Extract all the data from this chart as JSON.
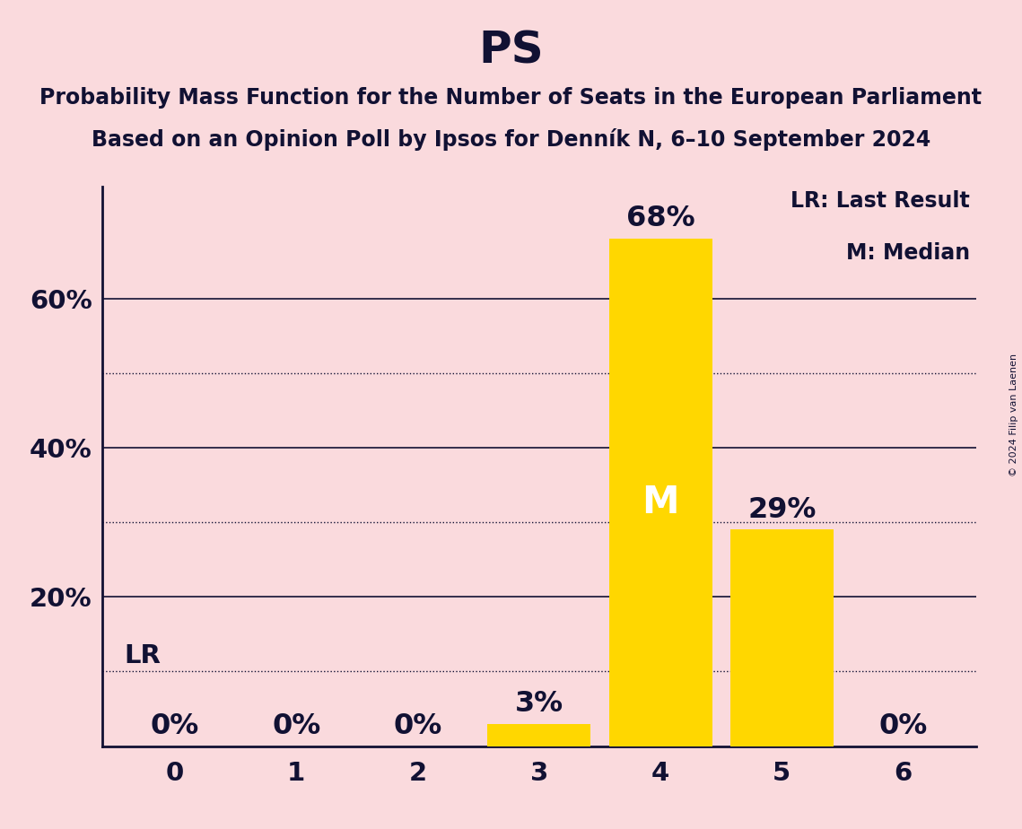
{
  "title": "PS",
  "subtitle_line1": "Probability Mass Function for the Number of Seats in the European Parliament",
  "subtitle_line2": "Based on an Opinion Poll by Ipsos for Denník N, 6–10 September 2024",
  "copyright": "© 2024 Filip van Laenen",
  "categories": [
    0,
    1,
    2,
    3,
    4,
    5,
    6
  ],
  "values": [
    0,
    0,
    0,
    3,
    68,
    29,
    0
  ],
  "bar_color": "#FFD700",
  "background_color": "#FADADD",
  "text_color": "#111133",
  "median_seat": 4,
  "median_label": "M",
  "lr_value": 10,
  "lr_label": "LR",
  "legend_lr": "LR: Last Result",
  "legend_m": "M: Median",
  "ylim": [
    0,
    75
  ],
  "solid_gridlines": [
    20,
    40,
    60
  ],
  "dotted_gridlines": [
    10,
    30,
    50
  ],
  "title_fontsize": 36,
  "subtitle_fontsize": 17,
  "tick_fontsize": 21,
  "bar_label_fontsize": 23,
  "legend_fontsize": 17,
  "lr_label_fontsize": 21,
  "median_fontsize": 30,
  "bar_width": 0.85
}
